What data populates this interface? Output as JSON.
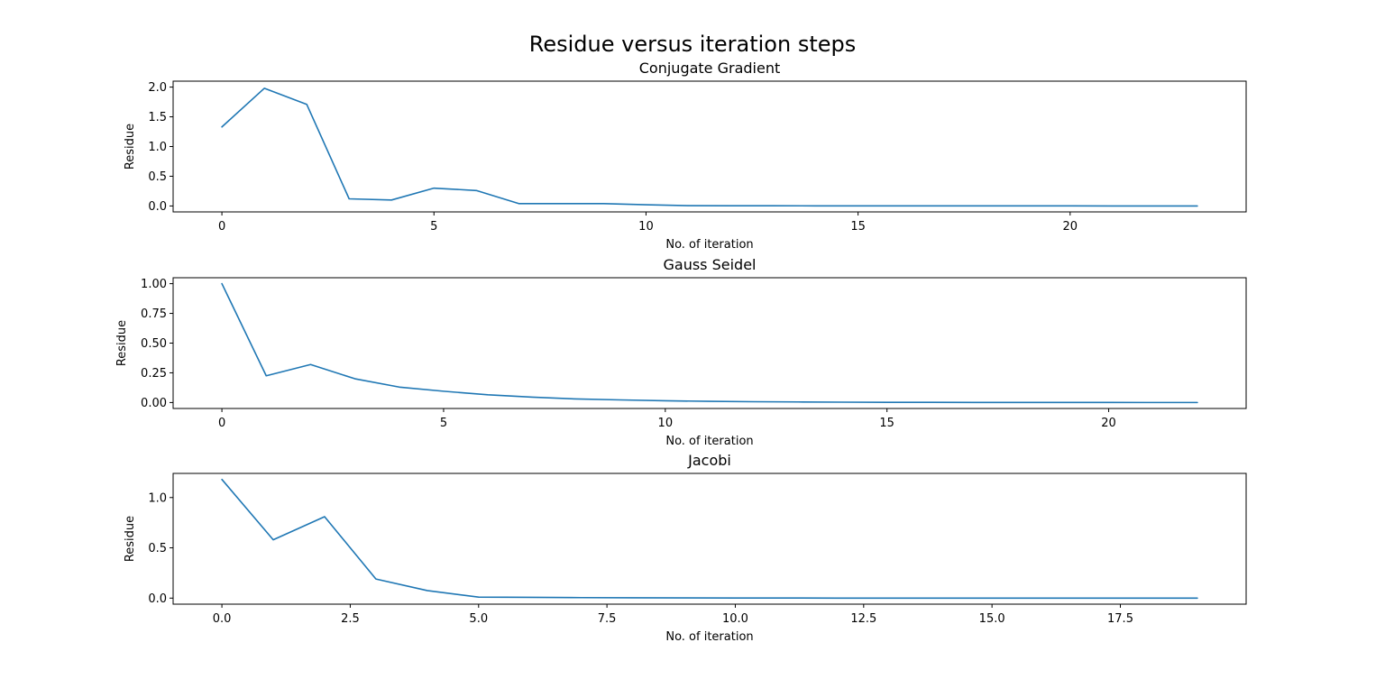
{
  "figure": {
    "suptitle": "Residue versus iteration steps"
  },
  "colors": {
    "series": "#1f77b4",
    "frame": "#000000",
    "background": "#ffffff"
  },
  "chart_data": [
    {
      "type": "line",
      "title": "Conjugate Gradient",
      "xlabel": "No. of iteration",
      "ylabel": "Residue",
      "xlim": [
        -1.15,
        24.15
      ],
      "ylim": [
        -0.1,
        2.1
      ],
      "grid": false,
      "xticks": [
        {
          "value": 0,
          "label": "0"
        },
        {
          "value": 5,
          "label": "5"
        },
        {
          "value": 10,
          "label": "10"
        },
        {
          "value": 15,
          "label": "15"
        },
        {
          "value": 20,
          "label": "20"
        }
      ],
      "yticks": [
        {
          "value": 0.0,
          "label": "0.0"
        },
        {
          "value": 0.5,
          "label": "0.5"
        },
        {
          "value": 1.0,
          "label": "1.0"
        },
        {
          "value": 1.5,
          "label": "1.5"
        },
        {
          "value": 2.0,
          "label": "2.0"
        }
      ],
      "series": [
        {
          "x": [
            0,
            1,
            2,
            3,
            4,
            5,
            6,
            7,
            8,
            9,
            10,
            11,
            12,
            13,
            14,
            15,
            16,
            17,
            18,
            19,
            20,
            21,
            22,
            23
          ],
          "values": [
            1.33,
            1.98,
            1.71,
            0.12,
            0.1,
            0.3,
            0.26,
            0.04,
            0.04,
            0.04,
            0.02,
            0.005,
            0.004,
            0.003,
            0.002,
            0.002,
            0.001,
            0.001,
            0.001,
            0.001,
            0.001,
            0.0,
            0.0,
            0.0
          ]
        }
      ]
    },
    {
      "type": "line",
      "title": "Gauss Seidel",
      "xlabel": "No. of iteration",
      "ylabel": "Residue",
      "xlim": [
        -1.1,
        23.1
      ],
      "ylim": [
        -0.05,
        1.05
      ],
      "grid": false,
      "xticks": [
        {
          "value": 0,
          "label": "0"
        },
        {
          "value": 5,
          "label": "5"
        },
        {
          "value": 10,
          "label": "10"
        },
        {
          "value": 15,
          "label": "15"
        },
        {
          "value": 20,
          "label": "20"
        }
      ],
      "yticks": [
        {
          "value": 0.0,
          "label": "0.00"
        },
        {
          "value": 0.25,
          "label": "0.25"
        },
        {
          "value": 0.5,
          "label": "0.50"
        },
        {
          "value": 0.75,
          "label": "0.75"
        },
        {
          "value": 1.0,
          "label": "1.00"
        }
      ],
      "series": [
        {
          "x": [
            0,
            1,
            2,
            3,
            4,
            5,
            6,
            7,
            8,
            9,
            10,
            11,
            12,
            13,
            14,
            15,
            16,
            17,
            18,
            19,
            20,
            21,
            22
          ],
          "values": [
            1.0,
            0.225,
            0.32,
            0.2,
            0.13,
            0.095,
            0.065,
            0.045,
            0.03,
            0.022,
            0.015,
            0.01,
            0.007,
            0.005,
            0.003,
            0.002,
            0.0015,
            0.001,
            0.001,
            0.0007,
            0.0005,
            0.0003,
            0.0002
          ]
        }
      ]
    },
    {
      "type": "line",
      "title": "Jacobi",
      "xlabel": "No. of iteration",
      "ylabel": "Residue",
      "xlim": [
        -0.95,
        19.95
      ],
      "ylim": [
        -0.06,
        1.24
      ],
      "grid": false,
      "xticks": [
        {
          "value": 0,
          "label": "0.0"
        },
        {
          "value": 2.5,
          "label": "2.5"
        },
        {
          "value": 5,
          "label": "5.0"
        },
        {
          "value": 7.5,
          "label": "7.5"
        },
        {
          "value": 10,
          "label": "10.0"
        },
        {
          "value": 12.5,
          "label": "12.5"
        },
        {
          "value": 15,
          "label": "15.0"
        },
        {
          "value": 17.5,
          "label": "17.5"
        }
      ],
      "yticks": [
        {
          "value": 0.0,
          "label": "0.0"
        },
        {
          "value": 0.5,
          "label": "0.5"
        },
        {
          "value": 1.0,
          "label": "1.0"
        }
      ],
      "series": [
        {
          "x": [
            0,
            1,
            2,
            3,
            4,
            5,
            6,
            7,
            8,
            9,
            10,
            11,
            12,
            13,
            14,
            15,
            16,
            17,
            18,
            19
          ],
          "values": [
            1.18,
            0.58,
            0.81,
            0.19,
            0.075,
            0.01,
            0.008,
            0.005,
            0.003,
            0.002,
            0.001,
            0.001,
            0.0,
            0.0,
            0.0,
            0.0,
            0.0,
            0.0,
            0.0,
            0.0
          ]
        }
      ]
    }
  ]
}
